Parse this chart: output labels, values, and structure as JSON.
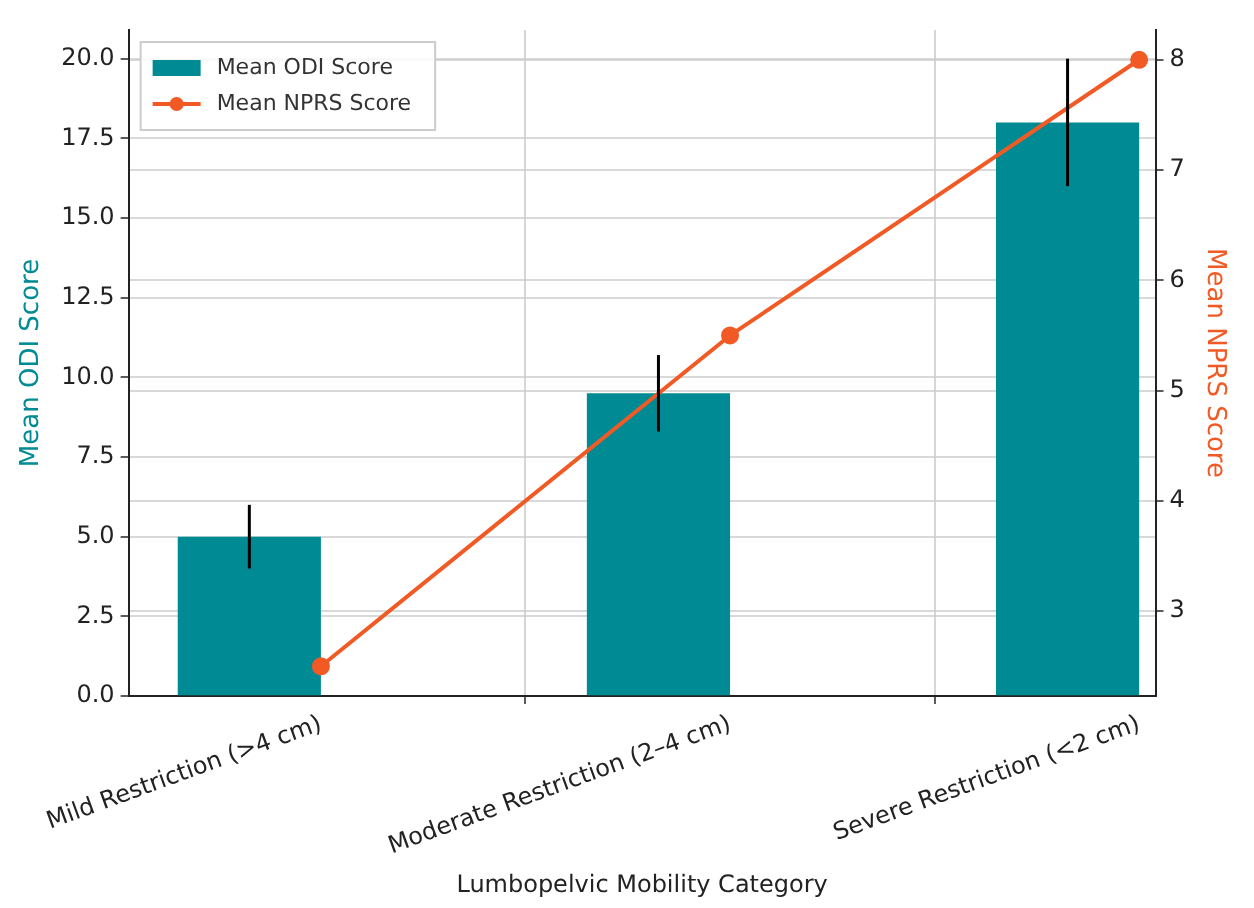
{
  "chart_data": {
    "type": "bar",
    "xlabel": "Lumbopelvic Mobility Category",
    "ylabel": "Mean ODI Score",
    "y2label": "Mean NPRS Score",
    "categories": [
      "Mild Restriction (>4 cm)",
      "Moderate Restriction (2–4 cm)",
      "Severe Restriction (<2 cm)"
    ],
    "series": [
      {
        "name": "Mean ODI Score",
        "color": "#008b94",
        "values": [
          5.0,
          9.5,
          18.0
        ],
        "errors": [
          1.0,
          1.2,
          2.0
        ]
      },
      {
        "name": "Mean NPRS Score",
        "type": "line",
        "axis": "y2",
        "color": "#f15a24",
        "values": [
          2.5,
          5.5,
          8.0
        ],
        "marker": "circle"
      }
    ],
    "ylim": [
      0,
      20.9
    ],
    "yticks": [
      {
        "value": 0,
        "label": "0.0"
      },
      {
        "value": 2.5,
        "label": "2.5"
      },
      {
        "value": 5,
        "label": "5.0"
      },
      {
        "value": 7.5,
        "label": "7.5"
      },
      {
        "value": 10,
        "label": "10.0"
      },
      {
        "value": 12.5,
        "label": "12.5"
      },
      {
        "value": 15,
        "label": "15.0"
      },
      {
        "value": 17.5,
        "label": "17.5"
      },
      {
        "value": 20,
        "label": "20.0"
      }
    ],
    "y2lim": [
      2.23,
      8.27
    ],
    "y2ticks": [
      3,
      4,
      5,
      6,
      7,
      8
    ],
    "grid": true,
    "legend": "top left"
  }
}
